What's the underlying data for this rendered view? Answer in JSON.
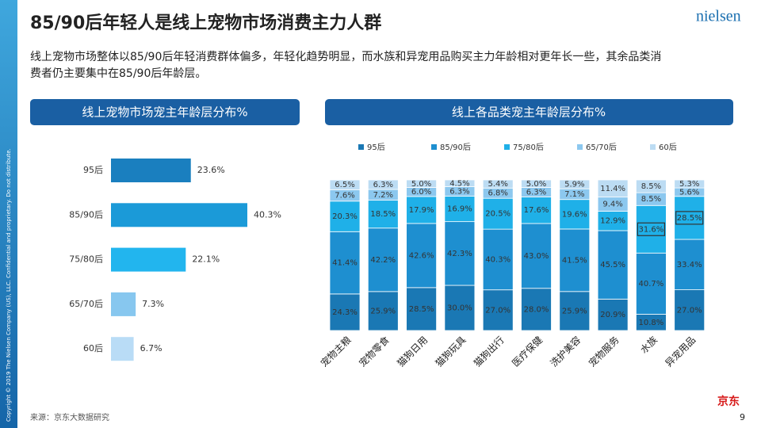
{
  "title": "85/90后年轻人是线上宠物市场消费主力人群",
  "subtitle": [
    "线上宠物市场整体以85/90后年轻消费群体偏多，年轻化趋势明显，而水族和异宠用品购买主力年龄相对更年长一些，其余品类消",
    "费者仍主要集中在85/90后年龄层。"
  ],
  "logo": "nielsen",
  "side_note": "Copyright © 2019 The Nielsen Company (US), LLC. Confidential and proprietary. Do not distribute.",
  "source": "来源：京东大数据研究",
  "page_number": "9",
  "partner_logo": "京东",
  "chart_data": [
    {
      "type": "hbar",
      "title": "线上宠物市场宠主年龄层分布%",
      "categories": [
        "95后",
        "85/90后",
        "75/80后",
        "65/70后",
        "60后"
      ],
      "values": [
        23.6,
        40.3,
        22.1,
        7.3,
        6.7
      ],
      "value_labels": [
        "23.6%",
        "40.3%",
        "22.1%",
        "7.3%",
        "6.7%"
      ],
      "colors": [
        "#1a7fbf",
        "#1b9ad8",
        "#22b5ee",
        "#87c7ef",
        "#b9dcf6"
      ]
    },
    {
      "type": "stacked_bar",
      "title": "线上各品类宠主年龄层分布%",
      "categories": [
        "宠物主粮",
        "宠物零食",
        "猫狗日用",
        "猫狗玩具",
        "猫狗出行",
        "医疗保健",
        "洗护美容",
        "宠物服务",
        "水族",
        "异宠用品"
      ],
      "legend": "top",
      "series": [
        {
          "name": "95后",
          "color": "#1a78b4",
          "values": [
            24.3,
            25.9,
            28.5,
            30.0,
            27.0,
            28.0,
            25.9,
            20.9,
            10.8,
            27.0
          ],
          "value_labels": [
            "24.3%",
            "25.9%",
            "28.5%",
            "30.0%",
            "27.0%",
            "28.0%",
            "25.9%",
            "20.9%",
            "10.8%",
            "27.0%"
          ]
        },
        {
          "name": "85/90后",
          "color": "#1e8fd0",
          "values": [
            41.4,
            42.2,
            42.6,
            42.3,
            40.3,
            43.0,
            41.5,
            45.5,
            40.7,
            33.4
          ],
          "value_labels": [
            "41.4%",
            "42.2%",
            "42.6%",
            "42.3%",
            "40.3%",
            "43.0%",
            "41.5%",
            "45.5%",
            "40.7%",
            "33.4%"
          ]
        },
        {
          "name": "75/80后",
          "color": "#1fb0e8",
          "values": [
            20.3,
            18.5,
            17.9,
            16.9,
            20.5,
            17.6,
            19.6,
            12.9,
            31.6,
            28.5
          ],
          "value_labels": [
            "20.3%",
            "18.5%",
            "17.9%",
            "16.9%",
            "20.5%",
            "17.6%",
            "19.6%",
            "12.9%",
            "31.6%",
            "28.5%"
          ]
        },
        {
          "name": "65/70后",
          "color": "#8cc8ef",
          "values": [
            7.6,
            7.2,
            6.0,
            6.3,
            6.8,
            6.3,
            7.1,
            9.4,
            8.5,
            5.6
          ],
          "value_labels": [
            "7.6%",
            "7.2%",
            "6.0%",
            "6.3%",
            "6.8%",
            "6.3%",
            "7.1%",
            "9.4%",
            "8.5%",
            "5.6%"
          ]
        },
        {
          "name": "60后",
          "color": "#bcdcf3",
          "values": [
            6.5,
            6.3,
            5.0,
            4.5,
            5.4,
            5.0,
            5.9,
            11.4,
            8.5,
            5.3
          ],
          "value_labels": [
            "6.5%",
            "6.3%",
            "5.0%",
            "4.5%",
            "5.4%",
            "5.0%",
            "5.9%",
            "11.4%",
            "8.5%",
            "5.3%"
          ]
        }
      ]
    }
  ]
}
